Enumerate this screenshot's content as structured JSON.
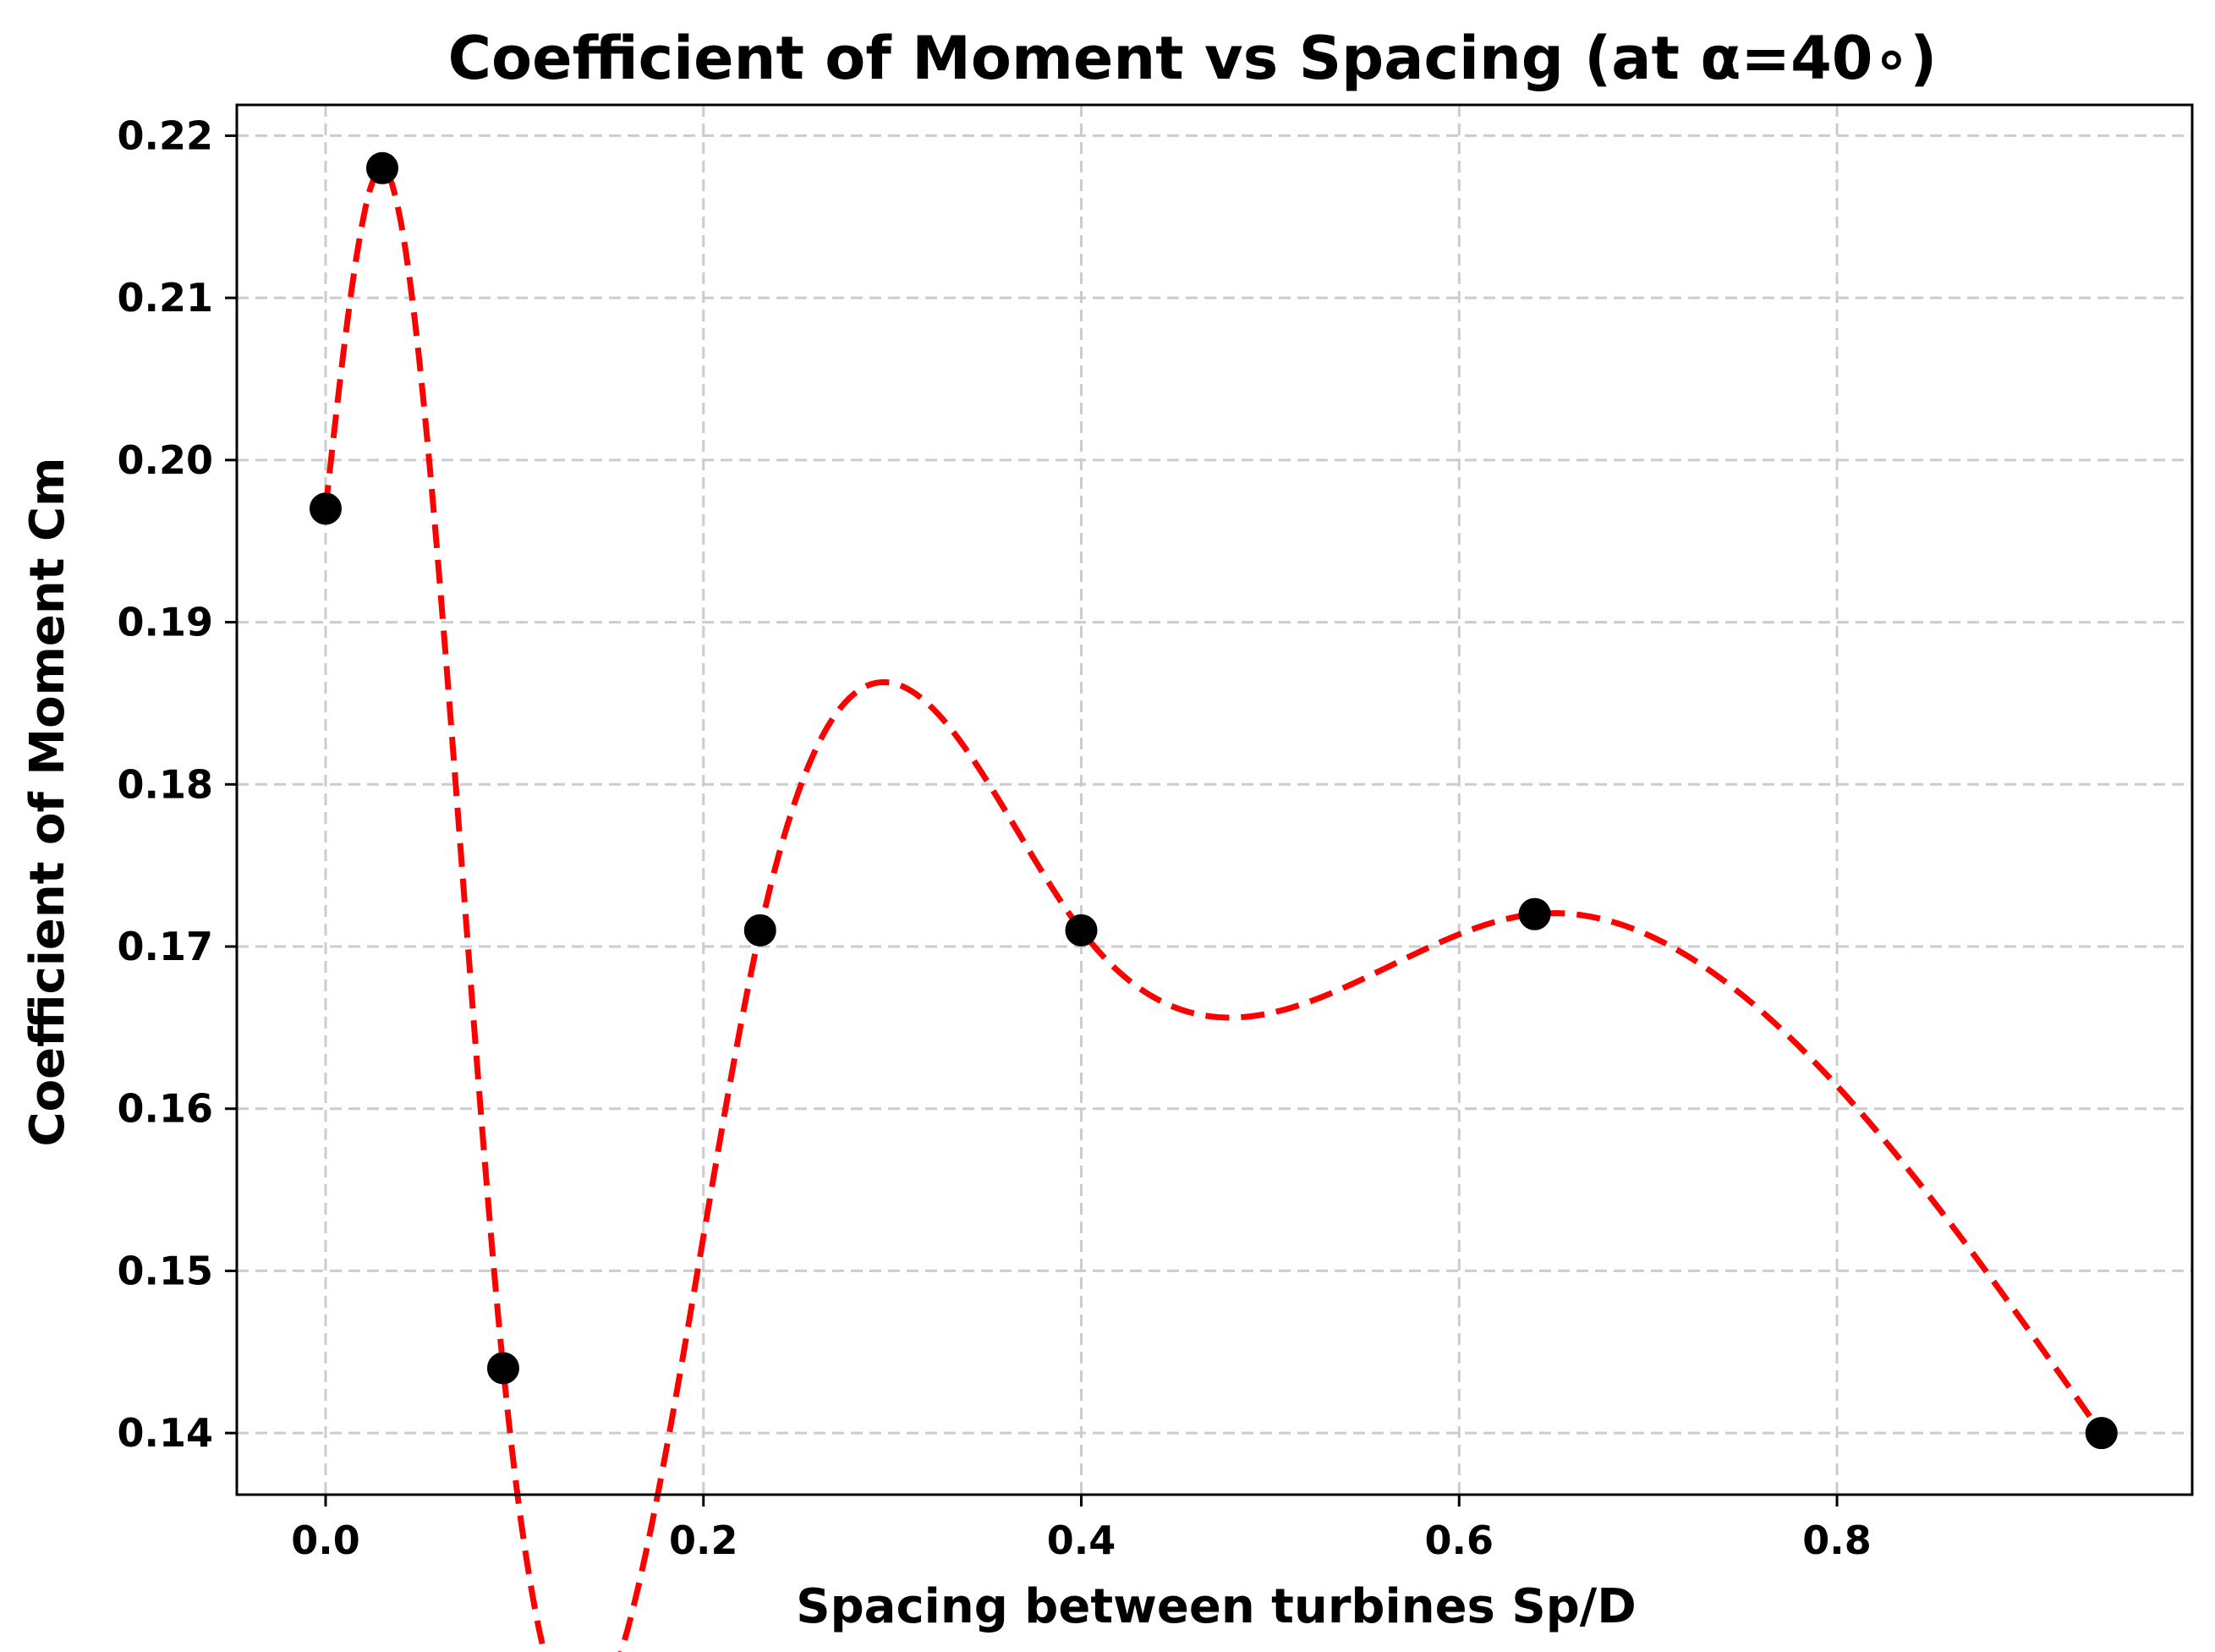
{
  "chart_data": {
    "type": "line",
    "title": "Coefficient of Moment vs Spacing (at α=40∘)",
    "xlabel": "Spacing between turbines Sp/D",
    "ylabel": "Coefficient of Moment Cm",
    "xlim": [
      -0.047,
      0.988
    ],
    "ylim": [
      0.1362,
      0.2219
    ],
    "xticks": [
      0.0,
      0.2,
      0.4,
      0.6,
      0.8
    ],
    "xtick_labels": [
      "0.0",
      "0.2",
      "0.4",
      "0.6",
      "0.8"
    ],
    "yticks": [
      0.14,
      0.15,
      0.16,
      0.17,
      0.18,
      0.19,
      0.2,
      0.21,
      0.22
    ],
    "ytick_labels": [
      "0.14",
      "0.15",
      "0.16",
      "0.17",
      "0.18",
      "0.19",
      "0.20",
      "0.21",
      "0.22"
    ],
    "grid": true,
    "series": [
      {
        "x": [
          0.0,
          0.03,
          0.094,
          0.23,
          0.4,
          0.64,
          0.94
        ],
        "y": [
          0.197,
          0.218,
          0.144,
          0.171,
          0.171,
          0.172,
          0.14
        ],
        "line_color": "#ff0000",
        "line_style": "dashed",
        "marker_color": "#000000",
        "marker": "circle"
      }
    ]
  }
}
